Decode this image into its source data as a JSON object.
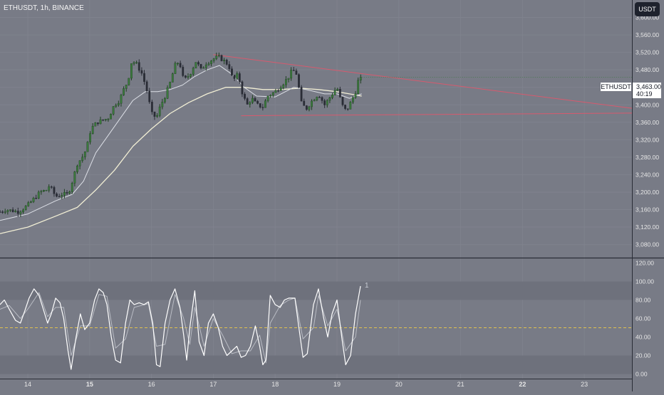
{
  "header": {
    "symbol_title": "ETHUSDT, 1h, BINANCE",
    "currency_button": "USDT"
  },
  "price_label": {
    "symbol": "ETHUSDT",
    "price": "3,463.00",
    "countdown": "40:19"
  },
  "colors": {
    "background": "#787b86",
    "band": "#6e717c",
    "grid": "#7f828d",
    "up_candle": "#3c7a3e",
    "down_candle": "#2a2d36",
    "ma_fast": "#dcdfe6",
    "ma_slow": "#f2efd5",
    "trendline": "#d75a6e",
    "stoch": "#ffffff",
    "midline": "#e0c24e",
    "axis_text": "#e6e6e6",
    "separator": "#2a2d36"
  },
  "chart_data": [
    {
      "type": "candlestick",
      "title": "",
      "symbol": "ETHUSDT",
      "interval": "1h",
      "exchange": "BINANCE",
      "ylim": [
        3050,
        3640
      ],
      "y_ticks": [
        3080,
        3120,
        3160,
        3200,
        3240,
        3280,
        3320,
        3360,
        3400,
        3440,
        3480,
        3520,
        3560,
        3600
      ],
      "y_tick_labels": [
        "3,080.00",
        "3,120.00",
        "3,160.00",
        "3,200.00",
        "3,240.00",
        "3,280.00",
        "3,320.00",
        "3,360.00",
        "3,400.00",
        "3,440.00",
        "3,480.00",
        "3,520.00",
        "3,560.00",
        "3,600.00"
      ],
      "x_tick_labels": [
        "14",
        "15",
        "16",
        "17",
        "18",
        "19",
        "20",
        "21",
        "22",
        "23"
      ],
      "bold_x_tick_labels": [
        "15",
        "22"
      ],
      "day_span": [
        13.55,
        23.77
      ],
      "close_anchors": [
        [
          13.55,
          3155
        ],
        [
          13.65,
          3160
        ],
        [
          13.85,
          3155
        ],
        [
          14.0,
          3170
        ],
        [
          14.1,
          3185
        ],
        [
          14.2,
          3200
        ],
        [
          14.3,
          3205
        ],
        [
          14.35,
          3215
        ],
        [
          14.45,
          3190
        ],
        [
          14.55,
          3195
        ],
        [
          14.65,
          3195
        ],
        [
          14.72,
          3225
        ],
        [
          14.8,
          3265
        ],
        [
          14.88,
          3280
        ],
        [
          14.95,
          3300
        ],
        [
          15.02,
          3345
        ],
        [
          15.12,
          3360
        ],
        [
          15.22,
          3365
        ],
        [
          15.3,
          3370
        ],
        [
          15.4,
          3400
        ],
        [
          15.48,
          3410
        ],
        [
          15.55,
          3435
        ],
        [
          15.62,
          3455
        ],
        [
          15.68,
          3500
        ],
        [
          15.75,
          3495
        ],
        [
          15.85,
          3470
        ],
        [
          15.93,
          3430
        ],
        [
          16.0,
          3380
        ],
        [
          16.08,
          3370
        ],
        [
          16.15,
          3400
        ],
        [
          16.22,
          3420
        ],
        [
          16.3,
          3450
        ],
        [
          16.38,
          3490
        ],
        [
          16.45,
          3500
        ],
        [
          16.52,
          3455
        ],
        [
          16.62,
          3470
        ],
        [
          16.72,
          3500
        ],
        [
          16.8,
          3480
        ],
        [
          16.88,
          3495
        ],
        [
          17.0,
          3505
        ],
        [
          17.08,
          3510
        ],
        [
          17.18,
          3500
        ],
        [
          17.25,
          3490
        ],
        [
          17.32,
          3455
        ],
        [
          17.4,
          3470
        ],
        [
          17.48,
          3420
        ],
        [
          17.55,
          3400
        ],
        [
          17.62,
          3415
        ],
        [
          17.7,
          3400
        ],
        [
          17.8,
          3395
        ],
        [
          17.88,
          3420
        ],
        [
          18.0,
          3430
        ],
        [
          18.1,
          3445
        ],
        [
          18.2,
          3460
        ],
        [
          18.28,
          3480
        ],
        [
          18.35,
          3470
        ],
        [
          18.42,
          3405
        ],
        [
          18.5,
          3390
        ],
        [
          18.6,
          3410
        ],
        [
          18.7,
          3425
        ],
        [
          18.8,
          3400
        ],
        [
          18.9,
          3420
        ],
        [
          19.0,
          3440
        ],
        [
          19.08,
          3400
        ],
        [
          19.15,
          3385
        ],
        [
          19.22,
          3405
        ],
        [
          19.3,
          3430
        ],
        [
          19.36,
          3465
        ],
        [
          19.4,
          3463
        ]
      ],
      "ma_fast": [
        [
          13.55,
          3135
        ],
        [
          14.0,
          3150
        ],
        [
          14.45,
          3180
        ],
        [
          14.72,
          3195
        ],
        [
          14.9,
          3225
        ],
        [
          15.1,
          3290
        ],
        [
          15.3,
          3330
        ],
        [
          15.5,
          3370
        ],
        [
          15.7,
          3410
        ],
        [
          15.9,
          3430
        ],
        [
          16.1,
          3430
        ],
        [
          16.3,
          3435
        ],
        [
          16.5,
          3445
        ],
        [
          16.7,
          3465
        ],
        [
          16.9,
          3480
        ],
        [
          17.1,
          3490
        ],
        [
          17.3,
          3470
        ],
        [
          17.5,
          3440
        ],
        [
          17.7,
          3420
        ],
        [
          18.0,
          3418
        ],
        [
          18.3,
          3440
        ],
        [
          18.5,
          3435
        ],
        [
          18.8,
          3425
        ],
        [
          19.0,
          3425
        ],
        [
          19.2,
          3415
        ],
        [
          19.4,
          3425
        ]
      ],
      "ma_slow": [
        [
          13.55,
          3105
        ],
        [
          14.0,
          3120
        ],
        [
          14.45,
          3145
        ],
        [
          14.8,
          3165
        ],
        [
          15.1,
          3205
        ],
        [
          15.4,
          3250
        ],
        [
          15.7,
          3305
        ],
        [
          16.0,
          3345
        ],
        [
          16.3,
          3380
        ],
        [
          16.6,
          3405
        ],
        [
          16.9,
          3425
        ],
        [
          17.2,
          3440
        ],
        [
          17.5,
          3440
        ],
        [
          17.8,
          3435
        ],
        [
          18.1,
          3435
        ],
        [
          18.4,
          3438
        ],
        [
          18.7,
          3435
        ],
        [
          19.0,
          3430
        ],
        [
          19.2,
          3425
        ],
        [
          19.4,
          3420
        ]
      ],
      "trendlines": [
        {
          "name": "upper",
          "from": [
            17.0,
            3515
          ],
          "to": [
            23.77,
            3392
          ]
        },
        {
          "name": "lower",
          "from": [
            17.45,
            3375
          ],
          "to": [
            23.77,
            3381
          ]
        }
      ],
      "last_price": 3463
    },
    {
      "type": "line",
      "title": "",
      "indicator": "stochastic",
      "ylim": [
        -5,
        125
      ],
      "y_ticks": [
        0,
        20,
        40,
        60,
        80,
        100,
        120
      ],
      "y_tick_labels": [
        "0.00",
        "20.00",
        "40.00",
        "60.00",
        "80.00",
        "100.00",
        "120.00"
      ],
      "bands": [
        [
          80,
          100
        ],
        [
          0,
          20
        ]
      ],
      "midline": 50,
      "value_label": "1",
      "k_line": [
        [
          13.55,
          75
        ],
        [
          13.62,
          80
        ],
        [
          13.7,
          70
        ],
        [
          13.8,
          58
        ],
        [
          13.88,
          55
        ],
        [
          13.95,
          68
        ],
        [
          14.02,
          82
        ],
        [
          14.1,
          92
        ],
        [
          14.18,
          85
        ],
        [
          14.25,
          70
        ],
        [
          14.32,
          55
        ],
        [
          14.38,
          65
        ],
        [
          14.45,
          82
        ],
        [
          14.52,
          77
        ],
        [
          14.58,
          60
        ],
        [
          14.65,
          25
        ],
        [
          14.7,
          5
        ],
        [
          14.78,
          40
        ],
        [
          14.85,
          65
        ],
        [
          14.92,
          48
        ],
        [
          15.0,
          55
        ],
        [
          15.08,
          80
        ],
        [
          15.15,
          92
        ],
        [
          15.22,
          88
        ],
        [
          15.28,
          75
        ],
        [
          15.35,
          40
        ],
        [
          15.42,
          15
        ],
        [
          15.5,
          12
        ],
        [
          15.58,
          55
        ],
        [
          15.65,
          80
        ],
        [
          15.72,
          75
        ],
        [
          15.8,
          77
        ],
        [
          15.88,
          75
        ],
        [
          15.95,
          78
        ],
        [
          16.02,
          55
        ],
        [
          16.08,
          10
        ],
        [
          16.14,
          8
        ],
        [
          16.22,
          55
        ],
        [
          16.3,
          80
        ],
        [
          16.38,
          92
        ],
        [
          16.46,
          72
        ],
        [
          16.52,
          42
        ],
        [
          16.57,
          15
        ],
        [
          16.62,
          50
        ],
        [
          16.7,
          90
        ],
        [
          16.77,
          35
        ],
        [
          16.85,
          20
        ],
        [
          16.92,
          55
        ],
        [
          17.0,
          65
        ],
        [
          17.08,
          50
        ],
        [
          17.15,
          30
        ],
        [
          17.22,
          20
        ],
        [
          17.3,
          25
        ],
        [
          17.38,
          30
        ],
        [
          17.45,
          18
        ],
        [
          17.52,
          20
        ],
        [
          17.6,
          30
        ],
        [
          17.68,
          52
        ],
        [
          17.75,
          30
        ],
        [
          17.8,
          10
        ],
        [
          17.85,
          15
        ],
        [
          17.92,
          85
        ],
        [
          18.0,
          75
        ],
        [
          18.08,
          72
        ],
        [
          18.15,
          80
        ],
        [
          18.22,
          82
        ],
        [
          18.32,
          82
        ],
        [
          18.38,
          52
        ],
        [
          18.45,
          18
        ],
        [
          18.52,
          22
        ],
        [
          18.62,
          75
        ],
        [
          18.7,
          92
        ],
        [
          18.78,
          62
        ],
        [
          18.85,
          40
        ],
        [
          18.92,
          65
        ],
        [
          19.0,
          80
        ],
        [
          19.08,
          38
        ],
        [
          19.14,
          10
        ],
        [
          19.22,
          20
        ],
        [
          19.3,
          65
        ],
        [
          19.38,
          95
        ]
      ],
      "d_line": [
        [
          13.55,
          70
        ],
        [
          13.7,
          74
        ],
        [
          13.88,
          60
        ],
        [
          14.02,
          72
        ],
        [
          14.18,
          88
        ],
        [
          14.32,
          62
        ],
        [
          14.45,
          72
        ],
        [
          14.58,
          72
        ],
        [
          14.7,
          20
        ],
        [
          14.85,
          52
        ],
        [
          15.0,
          52
        ],
        [
          15.15,
          86
        ],
        [
          15.28,
          84
        ],
        [
          15.42,
          28
        ],
        [
          15.58,
          38
        ],
        [
          15.72,
          72
        ],
        [
          15.95,
          76
        ],
        [
          16.08,
          30
        ],
        [
          16.22,
          32
        ],
        [
          16.38,
          86
        ],
        [
          16.52,
          60
        ],
        [
          16.62,
          32
        ],
        [
          16.7,
          72
        ],
        [
          16.85,
          30
        ],
        [
          17.0,
          60
        ],
        [
          17.15,
          42
        ],
        [
          17.3,
          22
        ],
        [
          17.45,
          25
        ],
        [
          17.6,
          25
        ],
        [
          17.75,
          42
        ],
        [
          17.85,
          12
        ],
        [
          17.92,
          55
        ],
        [
          18.08,
          74
        ],
        [
          18.22,
          80
        ],
        [
          18.32,
          82
        ],
        [
          18.45,
          38
        ],
        [
          18.62,
          50
        ],
        [
          18.7,
          85
        ],
        [
          18.85,
          52
        ],
        [
          19.0,
          70
        ],
        [
          19.14,
          25
        ],
        [
          19.3,
          40
        ],
        [
          19.38,
          80
        ]
      ]
    }
  ]
}
